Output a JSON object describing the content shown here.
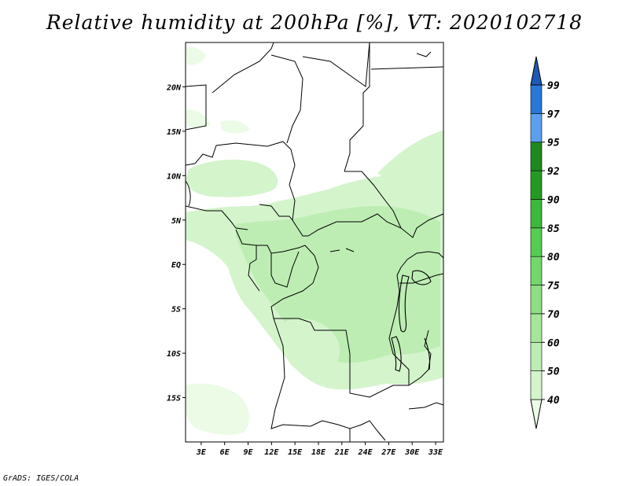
{
  "title": "Relative humidity at 200hPa [%], VT: 2020102718",
  "credit": "GrADS: IGES/COLA",
  "map": {
    "variable": "Relative humidity",
    "level": "200hPa",
    "units": "%",
    "valid_time": "2020102718",
    "lon_range": [
      1,
      34
    ],
    "lat_range": [
      -20,
      25
    ],
    "lat_labels": [
      "20N",
      "15N",
      "10N",
      "5N",
      "EQ",
      "5S",
      "10S",
      "15S"
    ],
    "lat_values": [
      20,
      15,
      10,
      5,
      0,
      -5,
      -10,
      -15
    ],
    "lon_labels": [
      "3E",
      "6E",
      "9E",
      "12E",
      "15E",
      "18E",
      "21E",
      "24E",
      "27E",
      "30E",
      "33E"
    ],
    "lon_values": [
      3,
      6,
      9,
      12,
      15,
      18,
      21,
      24,
      27,
      30,
      33
    ]
  },
  "colorbar": {
    "levels": [
      "40",
      "50",
      "60",
      "70",
      "75",
      "80",
      "85",
      "90",
      "92",
      "95",
      "97",
      "99"
    ],
    "colors": [
      "#ebfbe6",
      "#d4f4cc",
      "#bdedb3",
      "#a6e69a",
      "#8ede83",
      "#73d86b",
      "#55cc52",
      "#3cb83a",
      "#239b23",
      "#1e8a1e",
      "#5aa0ee",
      "#2878d8",
      "#1e5ab4"
    ]
  }
}
